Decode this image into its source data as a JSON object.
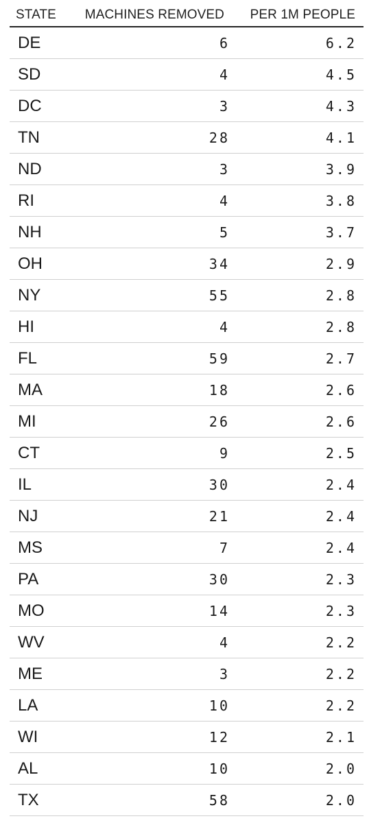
{
  "chart_data": {
    "type": "table",
    "columns": [
      "STATE",
      "MACHINES REMOVED",
      "PER 1M PEOPLE"
    ],
    "rows": [
      {
        "state": "DE",
        "machines_removed": "6",
        "per_1m_people": "6.2"
      },
      {
        "state": "SD",
        "machines_removed": "4",
        "per_1m_people": "4.5"
      },
      {
        "state": "DC",
        "machines_removed": "3",
        "per_1m_people": "4.3"
      },
      {
        "state": "TN",
        "machines_removed": "28",
        "per_1m_people": "4.1"
      },
      {
        "state": "ND",
        "machines_removed": "3",
        "per_1m_people": "3.9"
      },
      {
        "state": "RI",
        "machines_removed": "4",
        "per_1m_people": "3.8"
      },
      {
        "state": "NH",
        "machines_removed": "5",
        "per_1m_people": "3.7"
      },
      {
        "state": "OH",
        "machines_removed": "34",
        "per_1m_people": "2.9"
      },
      {
        "state": "NY",
        "machines_removed": "55",
        "per_1m_people": "2.8"
      },
      {
        "state": "HI",
        "machines_removed": "4",
        "per_1m_people": "2.8"
      },
      {
        "state": "FL",
        "machines_removed": "59",
        "per_1m_people": "2.7"
      },
      {
        "state": "MA",
        "machines_removed": "18",
        "per_1m_people": "2.6"
      },
      {
        "state": "MI",
        "machines_removed": "26",
        "per_1m_people": "2.6"
      },
      {
        "state": "CT",
        "machines_removed": "9",
        "per_1m_people": "2.5"
      },
      {
        "state": "IL",
        "machines_removed": "30",
        "per_1m_people": "2.4"
      },
      {
        "state": "NJ",
        "machines_removed": "21",
        "per_1m_people": "2.4"
      },
      {
        "state": "MS",
        "machines_removed": "7",
        "per_1m_people": "2.4"
      },
      {
        "state": "PA",
        "machines_removed": "30",
        "per_1m_people": "2.3"
      },
      {
        "state": "MO",
        "machines_removed": "14",
        "per_1m_people": "2.3"
      },
      {
        "state": "WV",
        "machines_removed": "4",
        "per_1m_people": "2.2"
      },
      {
        "state": "ME",
        "machines_removed": "3",
        "per_1m_people": "2.2"
      },
      {
        "state": "LA",
        "machines_removed": "10",
        "per_1m_people": "2.2"
      },
      {
        "state": "WI",
        "machines_removed": "12",
        "per_1m_people": "2.1"
      },
      {
        "state": "AL",
        "machines_removed": "10",
        "per_1m_people": "2.0"
      },
      {
        "state": "TX",
        "machines_removed": "58",
        "per_1m_people": "2.0"
      }
    ]
  },
  "colors": {
    "text": "#1a1a1a",
    "header_rule": "#222222",
    "row_rule": "#cfcfcf",
    "background": "#ffffff"
  }
}
